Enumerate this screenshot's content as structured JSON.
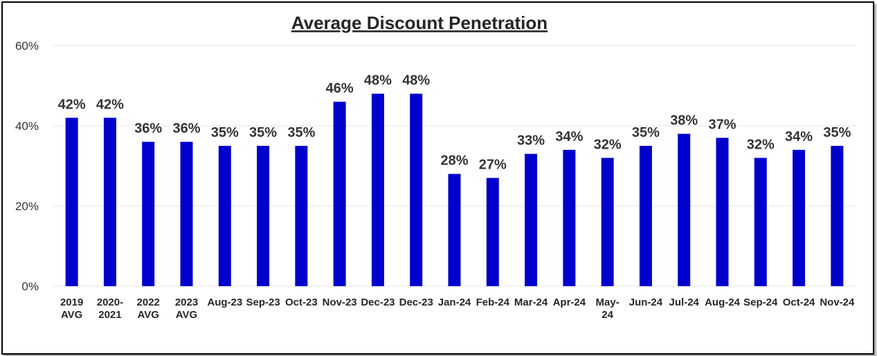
{
  "chart_data": {
    "type": "bar",
    "title": "Average Discount Penetration",
    "xlabel": "",
    "ylabel": "",
    "ylim": [
      0,
      60
    ],
    "yticks": [
      "0%",
      "20%",
      "40%",
      "60%"
    ],
    "grid": true,
    "legend": "none",
    "bar_color": "#0000CC",
    "categories": [
      [
        "2019",
        "AVG"
      ],
      [
        "2020-",
        "2021"
      ],
      [
        "2022",
        "AVG"
      ],
      [
        "2023",
        "AVG"
      ],
      [
        "Aug-23"
      ],
      [
        "Sep-23"
      ],
      [
        "Oct-23"
      ],
      [
        "Nov-23"
      ],
      [
        "Dec-23"
      ],
      [
        "Dec-23"
      ],
      [
        "Jan-24"
      ],
      [
        "Feb-24"
      ],
      [
        "Mar-24"
      ],
      [
        "Apr-24"
      ],
      [
        "May-",
        "24"
      ],
      [
        "Jun-24"
      ],
      [
        "Jul-24"
      ],
      [
        "Aug-24"
      ],
      [
        "Sep-24"
      ],
      [
        "Oct-24"
      ],
      [
        "Nov-24"
      ]
    ],
    "values": [
      42,
      42,
      36,
      36,
      35,
      35,
      35,
      46,
      48,
      48,
      28,
      27,
      33,
      34,
      32,
      35,
      38,
      37,
      32,
      34,
      35
    ],
    "data_labels": [
      "42%",
      "42%",
      "36%",
      "36%",
      "35%",
      "35%",
      "35%",
      "46%",
      "48%",
      "48%",
      "28%",
      "27%",
      "33%",
      "34%",
      "32%",
      "35%",
      "38%",
      "37%",
      "32%",
      "34%",
      "35%"
    ]
  }
}
